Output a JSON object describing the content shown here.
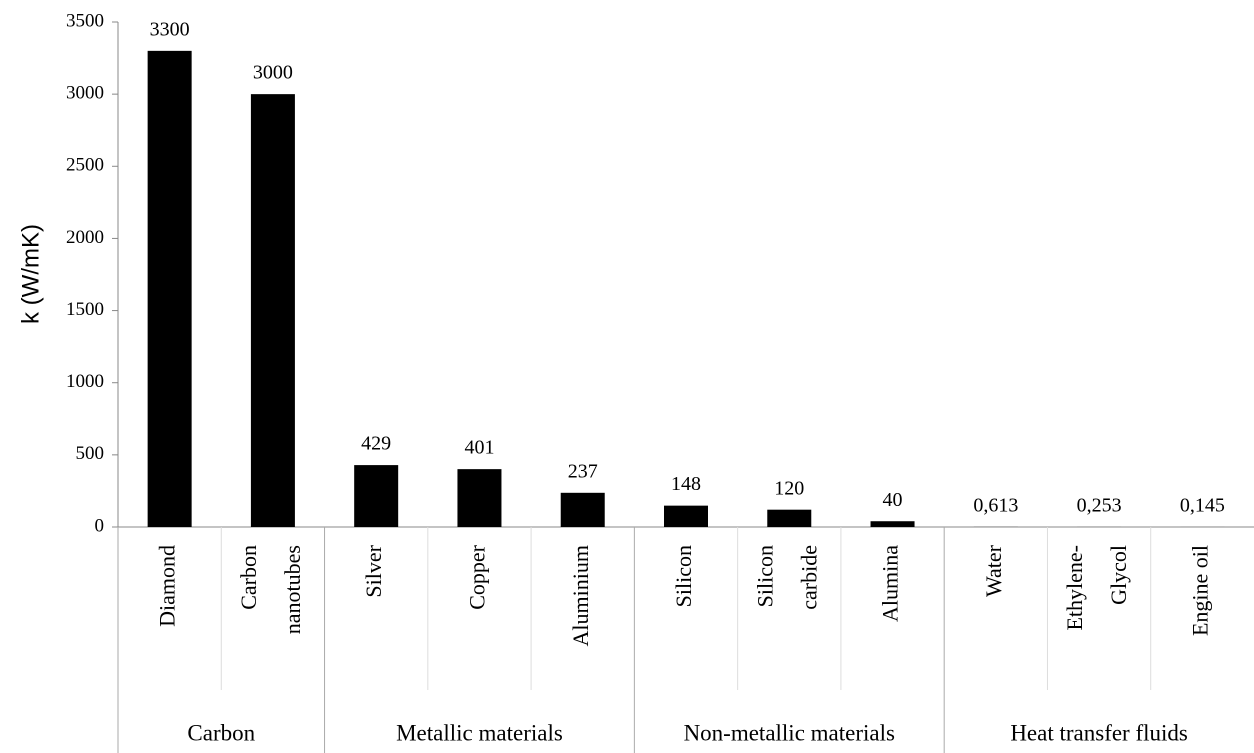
{
  "chart_data": {
    "type": "bar",
    "y_label": "k (W/mK)",
    "color": "#000000",
    "ylim": [
      0,
      3500
    ],
    "yticks": [
      0,
      500,
      1000,
      1500,
      2000,
      2500,
      3000,
      3500
    ],
    "grid": false,
    "groups": [
      {
        "name": "Carbon",
        "categories": [
          [
            "Diamond"
          ],
          [
            "Carbon",
            "nanotubes"
          ]
        ],
        "values": [
          3300,
          3000
        ]
      },
      {
        "name": "Metallic materials",
        "categories": [
          [
            "Silver"
          ],
          [
            "Copper"
          ],
          [
            "Aluminium"
          ]
        ],
        "values": [
          429,
          401,
          237
        ]
      },
      {
        "name": "Non-metallic materials",
        "categories": [
          [
            "Silicon"
          ],
          [
            "Silicon",
            "carbide"
          ],
          [
            "Alumina"
          ]
        ],
        "values": [
          148,
          120,
          40
        ]
      },
      {
        "name": "Heat transfer fluids",
        "categories": [
          [
            "Water"
          ],
          [
            "Ethylene-",
            "Glycol"
          ],
          [
            "Engine oil"
          ]
        ],
        "values": [
          0.613,
          0.253,
          0.145
        ],
        "value_labels": [
          "0,613",
          "0,253",
          "0,145"
        ]
      }
    ]
  }
}
